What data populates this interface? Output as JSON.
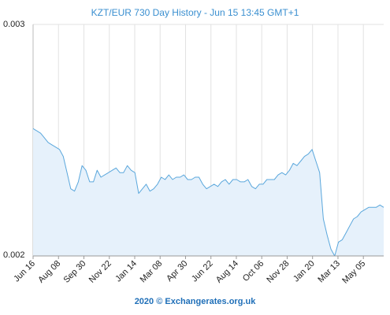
{
  "chart_data": {
    "type": "area",
    "title": "KZT/EUR 730 Day History - Jun 15 13:45 GMT+1",
    "xlabel": "",
    "ylabel": "",
    "ylim": [
      0.002,
      0.003
    ],
    "y_tick_labels": [
      "0.003",
      "0.002"
    ],
    "x_tick_labels": [
      "Jun 16",
      "Aug 08",
      "Sep 30",
      "Nov 22",
      "Jan 14",
      "Mar 08",
      "Apr 30",
      "Jun 22",
      "Aug 14",
      "Oct 06",
      "Nov 28",
      "Jan 20",
      "Mar 13",
      "May 05"
    ],
    "grid": "vertical",
    "legend": "none",
    "colors": {
      "line": "#5aa7dc",
      "fill": "#e6f1fb",
      "grid": "#e2e2e2",
      "title": "#3a8fd0",
      "footer": "#1f6fb8"
    },
    "series": [
      {
        "values": [
          0.00255,
          0.00254,
          0.00253,
          0.00251,
          0.00249,
          0.00248,
          0.00247,
          0.00246,
          0.00243,
          0.00236,
          0.00229,
          0.00228,
          0.00232,
          0.00239,
          0.00237,
          0.00232,
          0.00232,
          0.00237,
          0.00234,
          0.00235,
          0.00236,
          0.00237,
          0.00238,
          0.00236,
          0.00236,
          0.00239,
          0.00237,
          0.00236,
          0.00227,
          0.00229,
          0.00231,
          0.00228,
          0.00229,
          0.00231,
          0.00234,
          0.00233,
          0.00235,
          0.00233,
          0.00234,
          0.00234,
          0.00235,
          0.00233,
          0.00233,
          0.00234,
          0.00234,
          0.00231,
          0.00229,
          0.0023,
          0.00231,
          0.0023,
          0.00232,
          0.00233,
          0.00231,
          0.00233,
          0.00233,
          0.00232,
          0.00232,
          0.00233,
          0.0023,
          0.00229,
          0.00231,
          0.00231,
          0.00233,
          0.00233,
          0.00233,
          0.00235,
          0.00236,
          0.00235,
          0.00237,
          0.0024,
          0.00239,
          0.00241,
          0.00243,
          0.00244,
          0.00246,
          0.00241,
          0.00236,
          0.00216,
          0.00209,
          0.00203,
          0.002,
          0.00206,
          0.00207,
          0.0021,
          0.00213,
          0.00216,
          0.00217,
          0.00219,
          0.0022,
          0.00221,
          0.00221,
          0.00221,
          0.00222,
          0.00221
        ]
      }
    ]
  },
  "footer": {
    "text": "2020 © Exchangerates.org.uk"
  }
}
